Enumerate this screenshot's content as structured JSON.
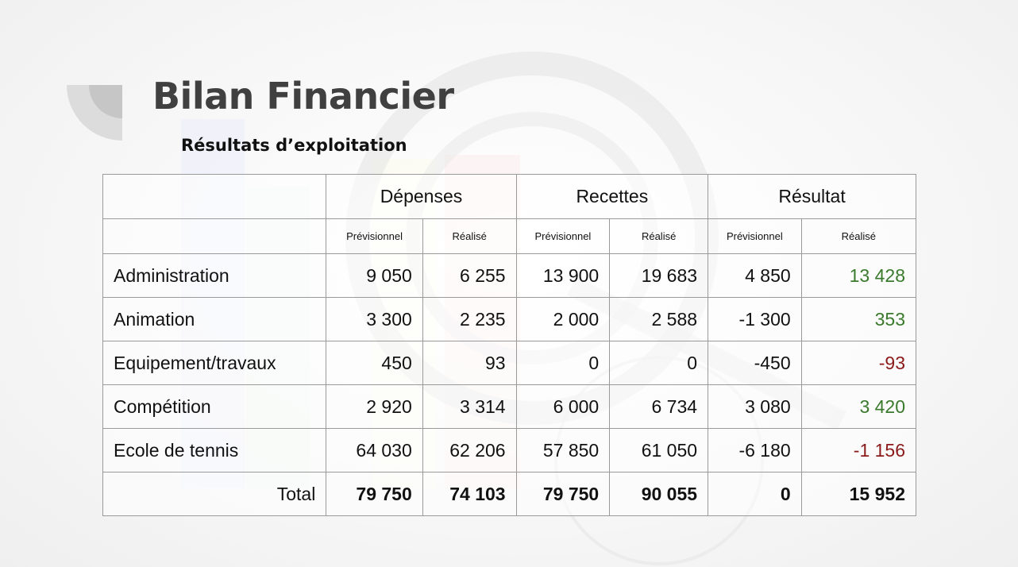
{
  "page": {
    "title": "Bilan Financier",
    "subtitle": "Résultats d’exploitation"
  },
  "table": {
    "groups": [
      "Dépenses",
      "Recettes",
      "Résultat"
    ],
    "subheaders": [
      "Prévisionnel",
      "Réalisé",
      "Prévisionnel",
      "Réalisé",
      "Prévisionnel",
      "Réalisé"
    ],
    "rows": [
      {
        "label": "Administration",
        "values": [
          "9 050",
          "6 255",
          "13 900",
          "19 683",
          "4 850",
          "13 428"
        ],
        "result_status": "positive"
      },
      {
        "label": "Animation",
        "values": [
          "3 300",
          "2 235",
          "2 000",
          "2 588",
          "-1 300",
          "353"
        ],
        "result_status": "positive"
      },
      {
        "label": "Equipement/travaux",
        "values": [
          "450",
          "93",
          "0",
          "0",
          "-450",
          "-93"
        ],
        "result_status": "negative"
      },
      {
        "label": "Compétition",
        "values": [
          "2 920",
          "3 314",
          "6 000",
          "6 734",
          "3 080",
          "3 420"
        ],
        "result_status": "positive"
      },
      {
        "label": "Ecole de tennis",
        "values": [
          "64 030",
          "62 206",
          "57 850",
          "61 050",
          "-6 180",
          "-1 156"
        ],
        "result_status": "negative"
      }
    ],
    "total": {
      "label": "Total",
      "values": [
        "79 750",
        "74 103",
        "79 750",
        "90 055",
        "0",
        "15 952"
      ]
    }
  },
  "colors": {
    "positive": "#3a7a2c",
    "negative": "#8b1a1a",
    "title": "#404040"
  }
}
